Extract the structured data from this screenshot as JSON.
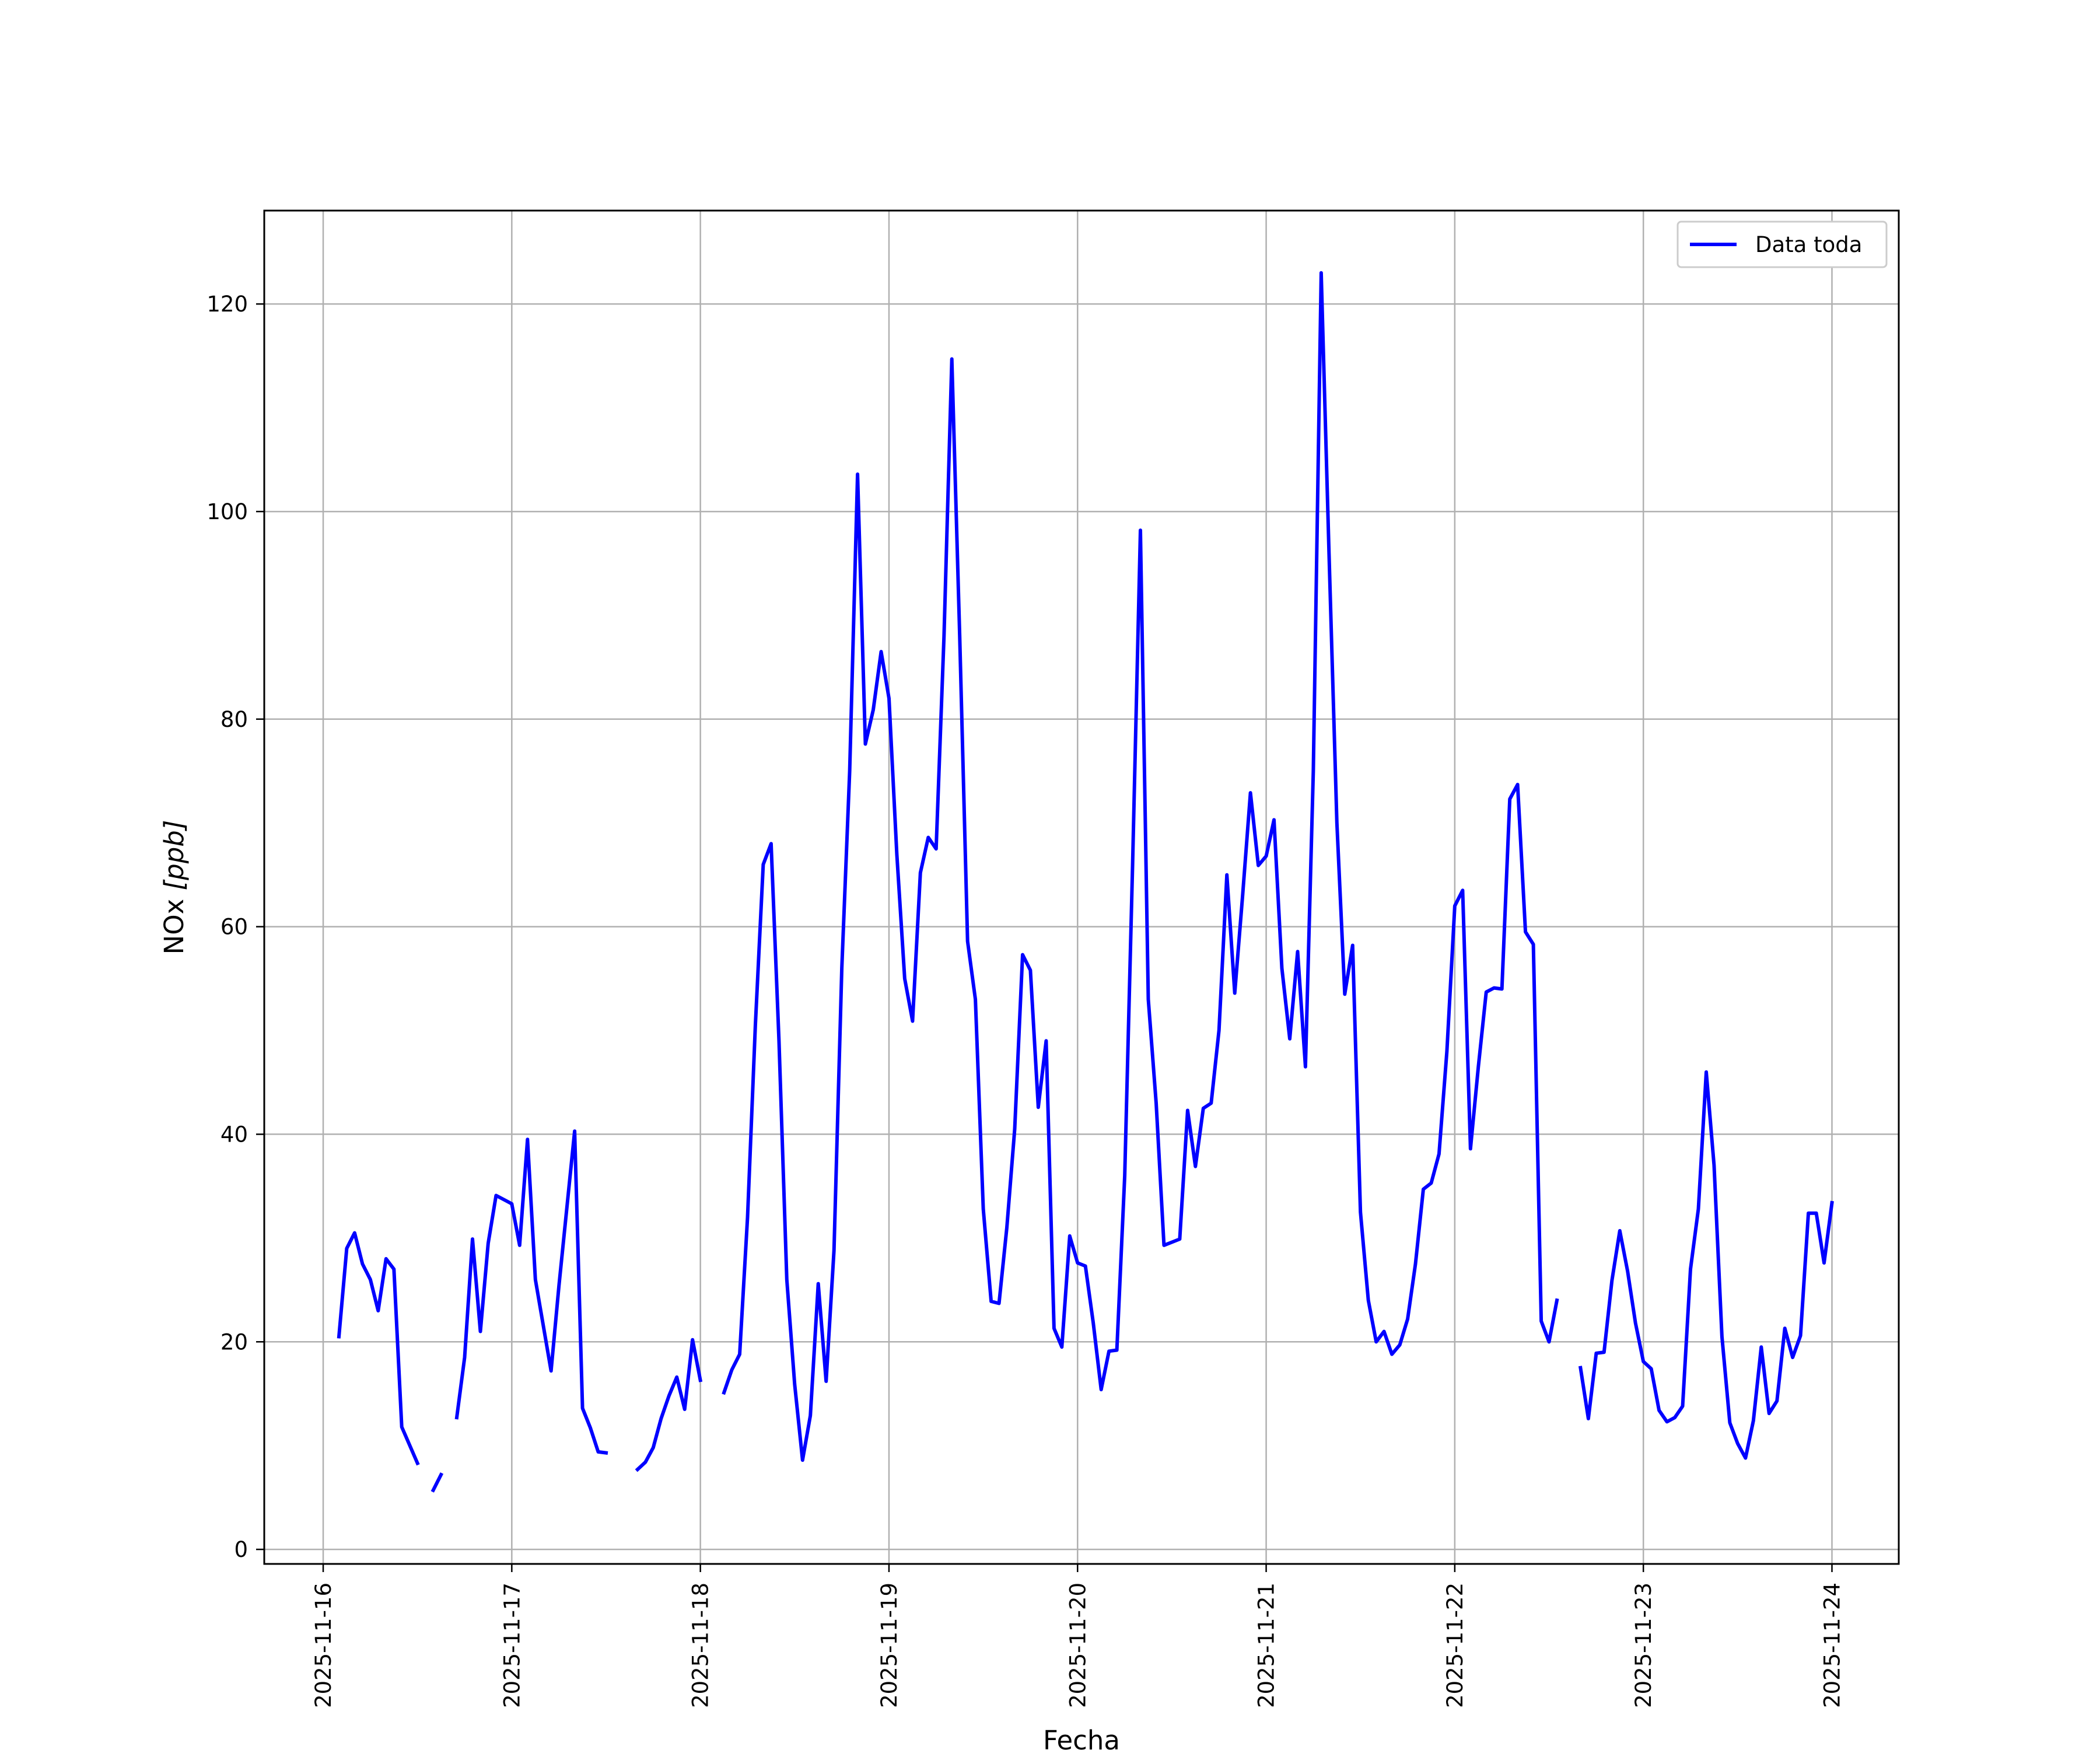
{
  "chart_data": {
    "type": "line",
    "title": "",
    "xlabel": "Fecha",
    "ylabel": "NOx",
    "ylabel_unit": "[ppb]",
    "x_ticks": [
      "2025-11-16",
      "2025-11-17",
      "2025-11-18",
      "2025-11-19",
      "2025-11-20",
      "2025-11-21",
      "2025-11-22",
      "2025-11-23",
      "2025-11-24"
    ],
    "y_ticks": [
      "0",
      "20",
      "40",
      "60",
      "80",
      "100",
      "120"
    ],
    "xlim": [
      "2025-11-15 16:30",
      "2025-11-24 08:30"
    ],
    "ylim": [
      -1.4,
      129
    ],
    "grid": true,
    "legend_position": "top-right",
    "series": [
      {
        "name": "Data toda",
        "color": "#0000ff",
        "points": [
          [
            "2025-11-16 02:00",
            20.5
          ],
          [
            "2025-11-16 03:00",
            29.0
          ],
          [
            "2025-11-16 04:00",
            30.5
          ],
          [
            "2025-11-16 05:00",
            27.5
          ],
          [
            "2025-11-16 06:00",
            26.0
          ],
          [
            "2025-11-16 07:00",
            23.0
          ],
          [
            "2025-11-16 08:00",
            28.0
          ],
          [
            "2025-11-16 09:00",
            27.0
          ],
          [
            "2025-11-16 10:00",
            11.8
          ],
          [
            "2025-11-16 12:00",
            8.3
          ],
          [
            "2025-11-16 13:00",
            null
          ],
          [
            "2025-11-16 14:00",
            5.7
          ],
          [
            "2025-11-16 15:00",
            7.2
          ],
          [
            "2025-11-16 16:00",
            null
          ],
          [
            "2025-11-16 17:00",
            12.7
          ],
          [
            "2025-11-16 18:00",
            18.5
          ],
          [
            "2025-11-16 19:00",
            29.9
          ],
          [
            "2025-11-16 20:00",
            21.0
          ],
          [
            "2025-11-16 21:00",
            29.5
          ],
          [
            "2025-11-16 22:00",
            34.1
          ],
          [
            "2025-11-16 23:00",
            33.7
          ],
          [
            "2025-11-17 00:00",
            33.3
          ],
          [
            "2025-11-17 01:00",
            29.3
          ],
          [
            "2025-11-17 02:00",
            39.5
          ],
          [
            "2025-11-17 03:00",
            26.0
          ],
          [
            "2025-11-17 05:00",
            17.2
          ],
          [
            "2025-11-17 06:00",
            25.4
          ],
          [
            "2025-11-17 08:00",
            40.3
          ],
          [
            "2025-11-17 09:00",
            13.6
          ],
          [
            "2025-11-17 10:00",
            11.7
          ],
          [
            "2025-11-17 11:00",
            9.4
          ],
          [
            "2025-11-17 12:00",
            9.3
          ],
          [
            "2025-11-17 13:00",
            null
          ],
          [
            "2025-11-17 16:00",
            7.7
          ],
          [
            "2025-11-17 17:00",
            8.4
          ],
          [
            "2025-11-17 18:00",
            9.8
          ],
          [
            "2025-11-17 19:00",
            12.6
          ],
          [
            "2025-11-17 20:00",
            14.8
          ],
          [
            "2025-11-17 21:00",
            16.6
          ],
          [
            "2025-11-17 22:00",
            13.5
          ],
          [
            "2025-11-17 23:00",
            20.2
          ],
          [
            "2025-11-18 00:00",
            16.3
          ],
          [
            "2025-11-18 01:00",
            null
          ],
          [
            "2025-11-18 03:00",
            15.1
          ],
          [
            "2025-11-18 04:00",
            17.3
          ],
          [
            "2025-11-18 05:00",
            18.8
          ],
          [
            "2025-11-18 06:00",
            32.0
          ],
          [
            "2025-11-18 07:00",
            50.5
          ],
          [
            "2025-11-18 08:00",
            66.0
          ],
          [
            "2025-11-18 09:00",
            68.0
          ],
          [
            "2025-11-18 10:00",
            49.0
          ],
          [
            "2025-11-18 11:00",
            26.0
          ],
          [
            "2025-11-18 12:00",
            15.9
          ],
          [
            "2025-11-18 13:00",
            8.6
          ],
          [
            "2025-11-18 14:00",
            12.9
          ],
          [
            "2025-11-18 15:00",
            25.6
          ],
          [
            "2025-11-18 16:00",
            16.2
          ],
          [
            "2025-11-18 17:00",
            28.8
          ],
          [
            "2025-11-18 18:00",
            56.0
          ],
          [
            "2025-11-18 19:00",
            75.0
          ],
          [
            "2025-11-18 20:00",
            103.6
          ],
          [
            "2025-11-18 21:00",
            77.6
          ],
          [
            "2025-11-18 22:00",
            80.9
          ],
          [
            "2025-11-18 23:00",
            86.5
          ],
          [
            "2025-11-19 00:00",
            82.0
          ],
          [
            "2025-11-19 01:00",
            67.0
          ],
          [
            "2025-11-19 02:00",
            55.0
          ],
          [
            "2025-11-19 03:00",
            50.9
          ],
          [
            "2025-11-19 04:00",
            65.2
          ],
          [
            "2025-11-19 05:00",
            68.6
          ],
          [
            "2025-11-19 06:00",
            67.5
          ],
          [
            "2025-11-19 07:00",
            88.0
          ],
          [
            "2025-11-19 08:00",
            114.7
          ],
          [
            "2025-11-19 09:00",
            88.0
          ],
          [
            "2025-11-19 10:00",
            58.6
          ],
          [
            "2025-11-19 11:00",
            53.0
          ],
          [
            "2025-11-19 12:00",
            32.8
          ],
          [
            "2025-11-19 13:00",
            23.9
          ],
          [
            "2025-11-19 14:00",
            23.7
          ],
          [
            "2025-11-19 15:00",
            31.0
          ],
          [
            "2025-11-19 16:00",
            40.5
          ],
          [
            "2025-11-19 17:00",
            57.3
          ],
          [
            "2025-11-19 18:00",
            55.8
          ],
          [
            "2025-11-19 19:00",
            42.6
          ],
          [
            "2025-11-19 20:00",
            49.0
          ],
          [
            "2025-11-19 21:00",
            21.3
          ],
          [
            "2025-11-19 22:00",
            19.5
          ],
          [
            "2025-11-19 23:00",
            30.2
          ],
          [
            "2025-11-20 00:00",
            27.6
          ],
          [
            "2025-11-20 01:00",
            27.3
          ],
          [
            "2025-11-20 02:00",
            21.8
          ],
          [
            "2025-11-20 03:00",
            15.4
          ],
          [
            "2025-11-20 04:00",
            19.1
          ],
          [
            "2025-11-20 05:00",
            19.2
          ],
          [
            "2025-11-20 06:00",
            36.0
          ],
          [
            "2025-11-20 07:00",
            66.0
          ],
          [
            "2025-11-20 08:00",
            98.2
          ],
          [
            "2025-11-20 09:00",
            53.0
          ],
          [
            "2025-11-20 10:00",
            43.0
          ],
          [
            "2025-11-20 11:00",
            29.3
          ],
          [
            "2025-11-20 12:00",
            29.6
          ],
          [
            "2025-11-20 13:00",
            29.9
          ],
          [
            "2025-11-20 14:00",
            42.3
          ],
          [
            "2025-11-20 15:00",
            36.9
          ],
          [
            "2025-11-20 16:00",
            42.5
          ],
          [
            "2025-11-20 17:00",
            43.0
          ],
          [
            "2025-11-20 18:00",
            50.0
          ],
          [
            "2025-11-20 19:00",
            65.0
          ],
          [
            "2025-11-20 20:00",
            53.6
          ],
          [
            "2025-11-20 21:00",
            63.0
          ],
          [
            "2025-11-20 22:00",
            72.9
          ],
          [
            "2025-11-20 23:00",
            65.9
          ],
          [
            "2025-11-21 00:00",
            66.8
          ],
          [
            "2025-11-21 01:00",
            70.3
          ],
          [
            "2025-11-21 02:00",
            56.0
          ],
          [
            "2025-11-21 03:00",
            49.2
          ],
          [
            "2025-11-21 04:00",
            57.6
          ],
          [
            "2025-11-21 05:00",
            46.5
          ],
          [
            "2025-11-21 06:00",
            75.0
          ],
          [
            "2025-11-21 07:00",
            123.0
          ],
          [
            "2025-11-21 08:00",
            96.0
          ],
          [
            "2025-11-21 09:00",
            70.0
          ],
          [
            "2025-11-21 10:00",
            53.5
          ],
          [
            "2025-11-21 11:00",
            58.2
          ],
          [
            "2025-11-21 12:00",
            32.5
          ],
          [
            "2025-11-21 13:00",
            24.0
          ],
          [
            "2025-11-21 14:00",
            20.0
          ],
          [
            "2025-11-21 15:00",
            21.0
          ],
          [
            "2025-11-21 16:00",
            18.8
          ],
          [
            "2025-11-21 17:00",
            19.7
          ],
          [
            "2025-11-21 18:00",
            22.2
          ],
          [
            "2025-11-21 19:00",
            27.5
          ],
          [
            "2025-11-21 20:00",
            34.7
          ],
          [
            "2025-11-21 21:00",
            35.3
          ],
          [
            "2025-11-21 22:00",
            38.1
          ],
          [
            "2025-11-21 23:00",
            48.0
          ],
          [
            "2025-11-22 00:00",
            62.0
          ],
          [
            "2025-11-22 01:00",
            63.5
          ],
          [
            "2025-11-22 02:00",
            38.6
          ],
          [
            "2025-11-22 03:00",
            46.5
          ],
          [
            "2025-11-22 04:00",
            53.7
          ],
          [
            "2025-11-22 05:00",
            54.1
          ],
          [
            "2025-11-22 06:00",
            54.0
          ],
          [
            "2025-11-22 07:00",
            72.3
          ],
          [
            "2025-11-22 08:00",
            73.7
          ],
          [
            "2025-11-22 09:00",
            59.5
          ],
          [
            "2025-11-22 10:00",
            58.3
          ],
          [
            "2025-11-22 11:00",
            22.0
          ],
          [
            "2025-11-22 12:00",
            20.0
          ],
          [
            "2025-11-22 13:00",
            24.0
          ],
          [
            "2025-11-22 14:00",
            null
          ],
          [
            "2025-11-22 16:00",
            17.5
          ],
          [
            "2025-11-22 17:00",
            12.6
          ],
          [
            "2025-11-22 18:00",
            18.9
          ],
          [
            "2025-11-22 19:00",
            19.0
          ],
          [
            "2025-11-22 20:00",
            25.9
          ],
          [
            "2025-11-22 21:00",
            30.7
          ],
          [
            "2025-11-22 22:00",
            26.8
          ],
          [
            "2025-11-22 23:00",
            21.8
          ],
          [
            "2025-11-23 00:00",
            18.1
          ],
          [
            "2025-11-23 01:00",
            17.4
          ],
          [
            "2025-11-23 02:00",
            13.4
          ],
          [
            "2025-11-23 03:00",
            12.3
          ],
          [
            "2025-11-23 04:00",
            12.7
          ],
          [
            "2025-11-23 05:00",
            13.8
          ],
          [
            "2025-11-23 06:00",
            27.0
          ],
          [
            "2025-11-23 07:00",
            32.8
          ],
          [
            "2025-11-23 08:00",
            46.0
          ],
          [
            "2025-11-23 09:00",
            37.0
          ],
          [
            "2025-11-23 10:00",
            20.5
          ],
          [
            "2025-11-23 11:00",
            12.2
          ],
          [
            "2025-11-23 12:00",
            10.2
          ],
          [
            "2025-11-23 13:00",
            8.8
          ],
          [
            "2025-11-23 14:00",
            12.4
          ],
          [
            "2025-11-23 15:00",
            19.5
          ],
          [
            "2025-11-23 16:00",
            13.1
          ],
          [
            "2025-11-23 17:00",
            14.3
          ],
          [
            "2025-11-23 18:00",
            21.3
          ],
          [
            "2025-11-23 19:00",
            18.5
          ],
          [
            "2025-11-23 20:00",
            20.6
          ],
          [
            "2025-11-23 21:00",
            32.4
          ],
          [
            "2025-11-23 22:00",
            32.4
          ],
          [
            "2025-11-23 23:00",
            27.6
          ],
          [
            "2025-11-24 00:00",
            33.4
          ]
        ]
      }
    ]
  }
}
